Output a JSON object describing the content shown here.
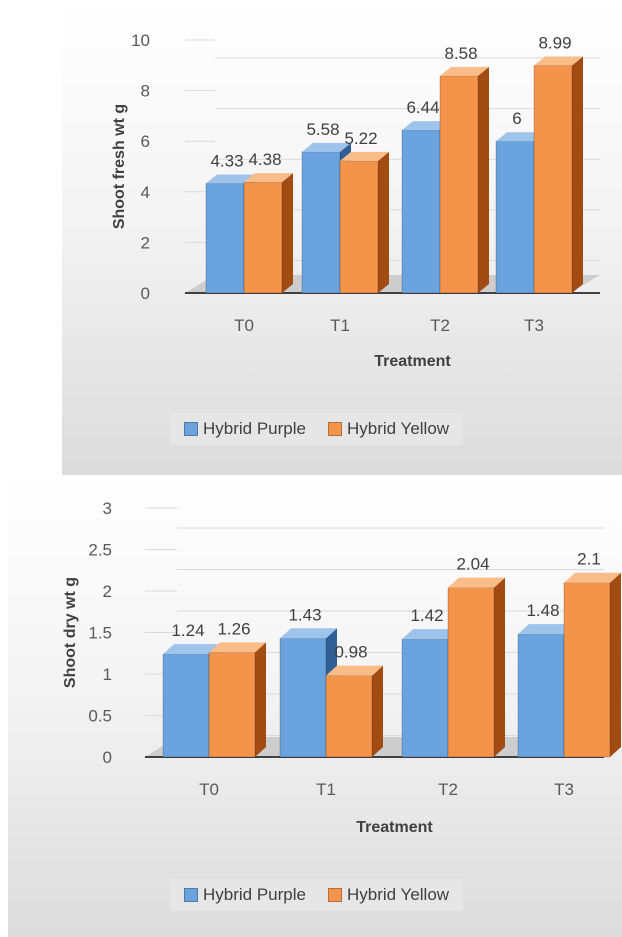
{
  "colors": {
    "purple_front": "#6aa3de",
    "purple_top": "#9ec4ec",
    "purple_side": "#2f5f95",
    "yellow_front": "#f4944a",
    "yellow_top": "#f9bd8a",
    "yellow_side": "#a24c14"
  },
  "chart_data": [
    {
      "type": "bar",
      "title": "",
      "xlabel": "Treatment",
      "ylabel": "Shoot fresh wt g",
      "ylim": [
        0,
        10
      ],
      "yticks": [
        0,
        2,
        4,
        6,
        8,
        10
      ],
      "grid": true,
      "legend_position": "bottom",
      "categories": [
        "T0",
        "T1",
        "T2",
        "T3"
      ],
      "series": [
        {
          "name": "Hybrid Purple",
          "values": [
            4.33,
            5.58,
            6.44,
            6
          ]
        },
        {
          "name": "Hybrid Yellow",
          "values": [
            4.38,
            5.22,
            8.58,
            8.99
          ]
        }
      ]
    },
    {
      "type": "bar",
      "title": "",
      "xlabel": "Treatment",
      "ylabel": "Shoot dry wt g",
      "ylim": [
        0,
        3
      ],
      "yticks": [
        0,
        0.5,
        1,
        1.5,
        2,
        2.5,
        3
      ],
      "grid": true,
      "legend_position": "bottom",
      "categories": [
        "T0",
        "T1",
        "T2",
        "T3"
      ],
      "series": [
        {
          "name": "Hybrid Purple",
          "values": [
            1.24,
            1.43,
            1.42,
            1.48
          ]
        },
        {
          "name": "Hybrid Yellow",
          "values": [
            1.26,
            0.98,
            2.04,
            2.1
          ]
        }
      ]
    }
  ]
}
